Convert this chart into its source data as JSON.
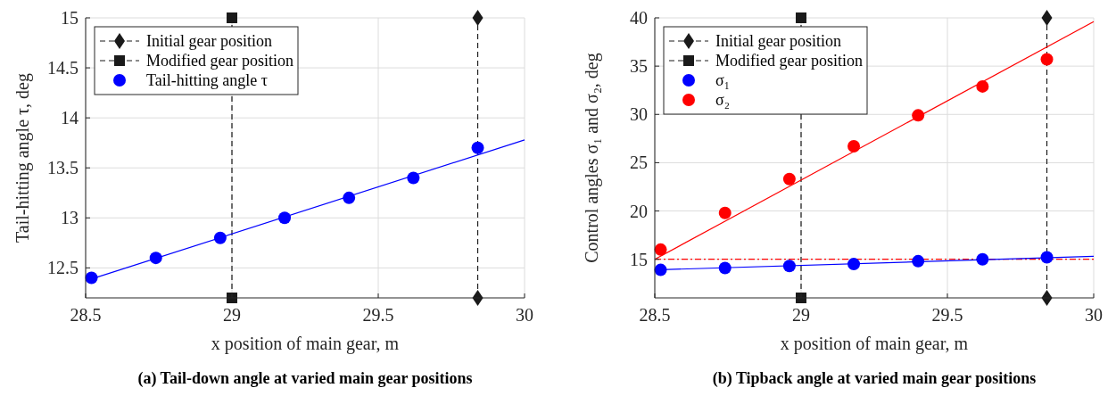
{
  "chart_data": [
    {
      "type": "scatter",
      "title": "(a) Tail-down angle at varied main gear positions",
      "xlabel": "x position of main gear, m",
      "ylabel": "Tail-hitting angle τ, deg",
      "xlim": [
        28.5,
        30
      ],
      "xticks": [
        28.5,
        29,
        29.5,
        30
      ],
      "ylim": [
        12.2,
        15
      ],
      "yticks": [
        12.5,
        13,
        13.5,
        14,
        14.5,
        15
      ],
      "grid": true,
      "legend": "top left",
      "series": [
        {
          "type": "line",
          "name": "Initial gear position",
          "color": "#1a1a1a",
          "x": [
            29.84,
            29.84
          ],
          "values": [
            12.2,
            15
          ],
          "marker": "diamond",
          "line_style": "dashed"
        },
        {
          "type": "line",
          "name": "Modified gear position",
          "color": "#1a1a1a",
          "x": [
            29,
            29
          ],
          "values": [
            12.2,
            15
          ],
          "marker": "square",
          "line_style": "dashed"
        },
        {
          "type": "scatter",
          "name": "Tail-hitting angle τ",
          "color": "#0000ff",
          "x": [
            28.52,
            28.74,
            28.96,
            29.18,
            29.4,
            29.62,
            29.84
          ],
          "values": [
            12.4,
            12.6,
            12.8,
            13.0,
            13.2,
            13.4,
            13.7
          ],
          "marker": "circle"
        },
        {
          "type": "line",
          "color": "#0000ff",
          "x": [
            28.5,
            30
          ],
          "values": [
            12.37,
            13.78
          ],
          "marker": "none",
          "line_style": "solid"
        }
      ]
    },
    {
      "type": "scatter",
      "title": "(b) Tipback angle at varied main gear positions",
      "xlabel": "x position of main gear, m",
      "ylabel": "Control angles σ₁ and σ₂, deg",
      "xlim": [
        28.5,
        30
      ],
      "xticks": [
        28.5,
        29,
        29.5,
        30
      ],
      "ylim": [
        11,
        40
      ],
      "yticks": [
        15,
        20,
        25,
        30,
        35,
        40
      ],
      "grid": true,
      "legend": "top left",
      "ref_lines": [
        {
          "axis": "y",
          "value": 15,
          "label": null,
          "color": "#ff0000",
          "line_style": "dashed"
        }
      ],
      "series": [
        {
          "type": "line",
          "name": "Initial gear position",
          "color": "#1a1a1a",
          "x": [
            29.84,
            29.84
          ],
          "values": [
            11,
            40
          ],
          "marker": "diamond",
          "line_style": "dashed"
        },
        {
          "type": "line",
          "name": "Modified gear position",
          "color": "#1a1a1a",
          "x": [
            29,
            29
          ],
          "values": [
            11,
            40
          ],
          "marker": "square",
          "line_style": "dashed"
        },
        {
          "type": "scatter",
          "name": "σ₁",
          "color": "#0000ff",
          "x": [
            28.52,
            28.74,
            28.96,
            29.18,
            29.4,
            29.62,
            29.84
          ],
          "values": [
            13.9,
            14.1,
            14.3,
            14.5,
            14.8,
            15.0,
            15.2
          ],
          "marker": "circle"
        },
        {
          "type": "scatter",
          "name": "σ₂",
          "color": "#ff0000",
          "x": [
            28.52,
            28.74,
            28.96,
            29.18,
            29.4,
            29.62,
            29.84
          ],
          "values": [
            16.0,
            19.8,
            23.3,
            26.7,
            29.9,
            32.9,
            35.7
          ],
          "marker": "circle"
        },
        {
          "type": "line",
          "color": "#ff0000",
          "x": [
            28.5,
            30
          ],
          "values": [
            15.0,
            39.6
          ],
          "marker": "none",
          "line_style": "solid"
        },
        {
          "type": "line",
          "color": "#0000ff",
          "x": [
            28.5,
            30
          ],
          "values": [
            13.9,
            15.3
          ],
          "marker": "none",
          "line_style": "solid"
        }
      ]
    }
  ]
}
